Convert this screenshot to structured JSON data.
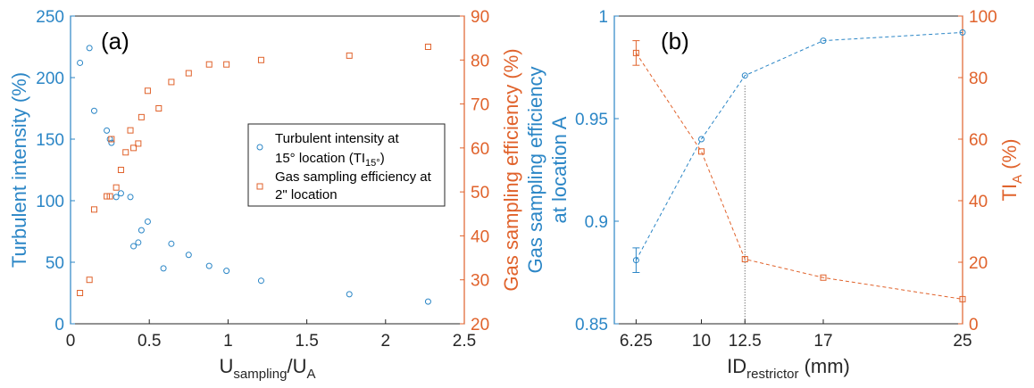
{
  "colors": {
    "blue": "#2b86c6",
    "orange": "#e0622b"
  },
  "chart_data": [
    {
      "type": "scatter",
      "panel_label": "(a)",
      "xlabel": {
        "main": "U",
        "sub1": "sampling",
        "slash": "/U",
        "sub2": "A"
      },
      "ylabel_left": "Turbulent intensity (%)",
      "ylabel_right": "Gas sampling efficiency (%)",
      "xlim": [
        0,
        2.5
      ],
      "ylim_left": [
        0,
        250
      ],
      "ylim_right": [
        20,
        90
      ],
      "xticks": [
        "0",
        "0.5",
        "1",
        "1.5",
        "2",
        "2.5"
      ],
      "yticks_left": [
        "0",
        "50",
        "100",
        "150",
        "200",
        "250"
      ],
      "yticks_right": [
        "20",
        "30",
        "40",
        "50",
        "60",
        "70",
        "80",
        "90"
      ],
      "legend": {
        "placement": "center-right",
        "entries": [
          {
            "line1": "Turbulent intensity at",
            "line2a": " 15° location (TI",
            "line2sub": "15°",
            "line2b": ")"
          },
          {
            "line1": "Gas sampling efficiency at",
            "line2a": "2\" location",
            "line2sub": "",
            "line2b": ""
          }
        ]
      },
      "series": [
        {
          "name": "Turbulent intensity at 15° location (TI15°)",
          "axis": "left",
          "marker": "circle",
          "points": [
            [
              0.06,
              212
            ],
            [
              0.12,
              224
            ],
            [
              0.15,
              173
            ],
            [
              0.23,
              157
            ],
            [
              0.25,
              150
            ],
            [
              0.26,
              147
            ],
            [
              0.29,
              103
            ],
            [
              0.32,
              106
            ],
            [
              0.38,
              103
            ],
            [
              0.4,
              63
            ],
            [
              0.43,
              66
            ],
            [
              0.45,
              76
            ],
            [
              0.49,
              83
            ],
            [
              0.59,
              45
            ],
            [
              0.64,
              65
            ],
            [
              0.75,
              56
            ],
            [
              0.88,
              47
            ],
            [
              0.99,
              43
            ],
            [
              1.21,
              35
            ],
            [
              1.77,
              24
            ],
            [
              2.27,
              18
            ]
          ]
        },
        {
          "name": "Gas sampling efficiency at 2\" location",
          "axis": "right",
          "marker": "square",
          "points": [
            [
              0.06,
              27
            ],
            [
              0.12,
              30
            ],
            [
              0.15,
              46
            ],
            [
              0.23,
              49
            ],
            [
              0.25,
              49
            ],
            [
              0.26,
              62
            ],
            [
              0.29,
              51
            ],
            [
              0.32,
              55
            ],
            [
              0.35,
              59
            ],
            [
              0.38,
              64
            ],
            [
              0.4,
              60
            ],
            [
              0.43,
              61
            ],
            [
              0.45,
              67
            ],
            [
              0.49,
              73
            ],
            [
              0.56,
              69
            ],
            [
              0.64,
              75
            ],
            [
              0.75,
              77
            ],
            [
              0.88,
              79
            ],
            [
              0.99,
              79
            ],
            [
              1.21,
              80
            ],
            [
              1.77,
              81
            ],
            [
              2.27,
              83
            ]
          ]
        }
      ]
    },
    {
      "type": "line",
      "panel_label": "(b)",
      "xlabel": {
        "main": "ID",
        "sub1": "restrictor",
        "tail": " (mm)"
      },
      "ylabel_left": [
        "Gas sampling efficiency",
        "at location A"
      ],
      "ylabel_right": {
        "main": "TI",
        "sub": "A",
        "tail": " (%)"
      },
      "xlim": [
        5,
        25
      ],
      "ylim_left": [
        0.85,
        1
      ],
      "ylim_right": [
        0,
        100
      ],
      "xtick_values": [
        6.25,
        10,
        12.5,
        17,
        25
      ],
      "xticks": [
        "6.25",
        "10",
        "12.5",
        "17",
        "25"
      ],
      "yticks_left": [
        "0.85",
        "0.9",
        "0.95",
        "1"
      ],
      "yticks_right": [
        "0",
        "20",
        "40",
        "60",
        "80",
        "100"
      ],
      "vline_x": 12.5,
      "series": [
        {
          "axis": "left",
          "marker": "circle",
          "x": [
            6.25,
            10,
            12.5,
            17,
            25
          ],
          "y": [
            0.881,
            0.94,
            0.971,
            0.988,
            0.992
          ],
          "err": [
            0.006,
            0,
            0,
            0,
            0
          ]
        },
        {
          "axis": "right",
          "marker": "square",
          "x": [
            6.25,
            10,
            12.5,
            17,
            25
          ],
          "y": [
            88,
            56,
            21,
            15,
            8
          ],
          "err": [
            4,
            0,
            0,
            0,
            0
          ]
        }
      ]
    }
  ]
}
